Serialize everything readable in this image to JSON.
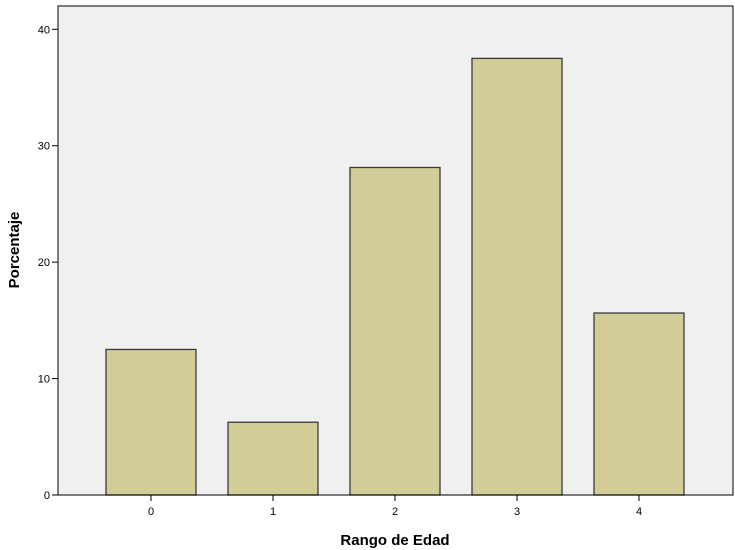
{
  "chart_data": {
    "type": "bar",
    "xlabel": "Rango de Edad",
    "ylabel": "Porcentaje",
    "categories": [
      "0",
      "1",
      "2",
      "3",
      "4"
    ],
    "values": [
      12.5,
      6.25,
      28.13,
      37.5,
      15.63
    ],
    "ylim": [
      0,
      42
    ],
    "yticks": [
      "0",
      "10",
      "20",
      "30",
      "40"
    ],
    "grid": false,
    "legend": "none",
    "colors": {
      "plot_background": "#f0f0f0",
      "bar_fill": "#d3ce97",
      "bar_stroke": "#3a3a3a",
      "axis": "#000000"
    }
  }
}
